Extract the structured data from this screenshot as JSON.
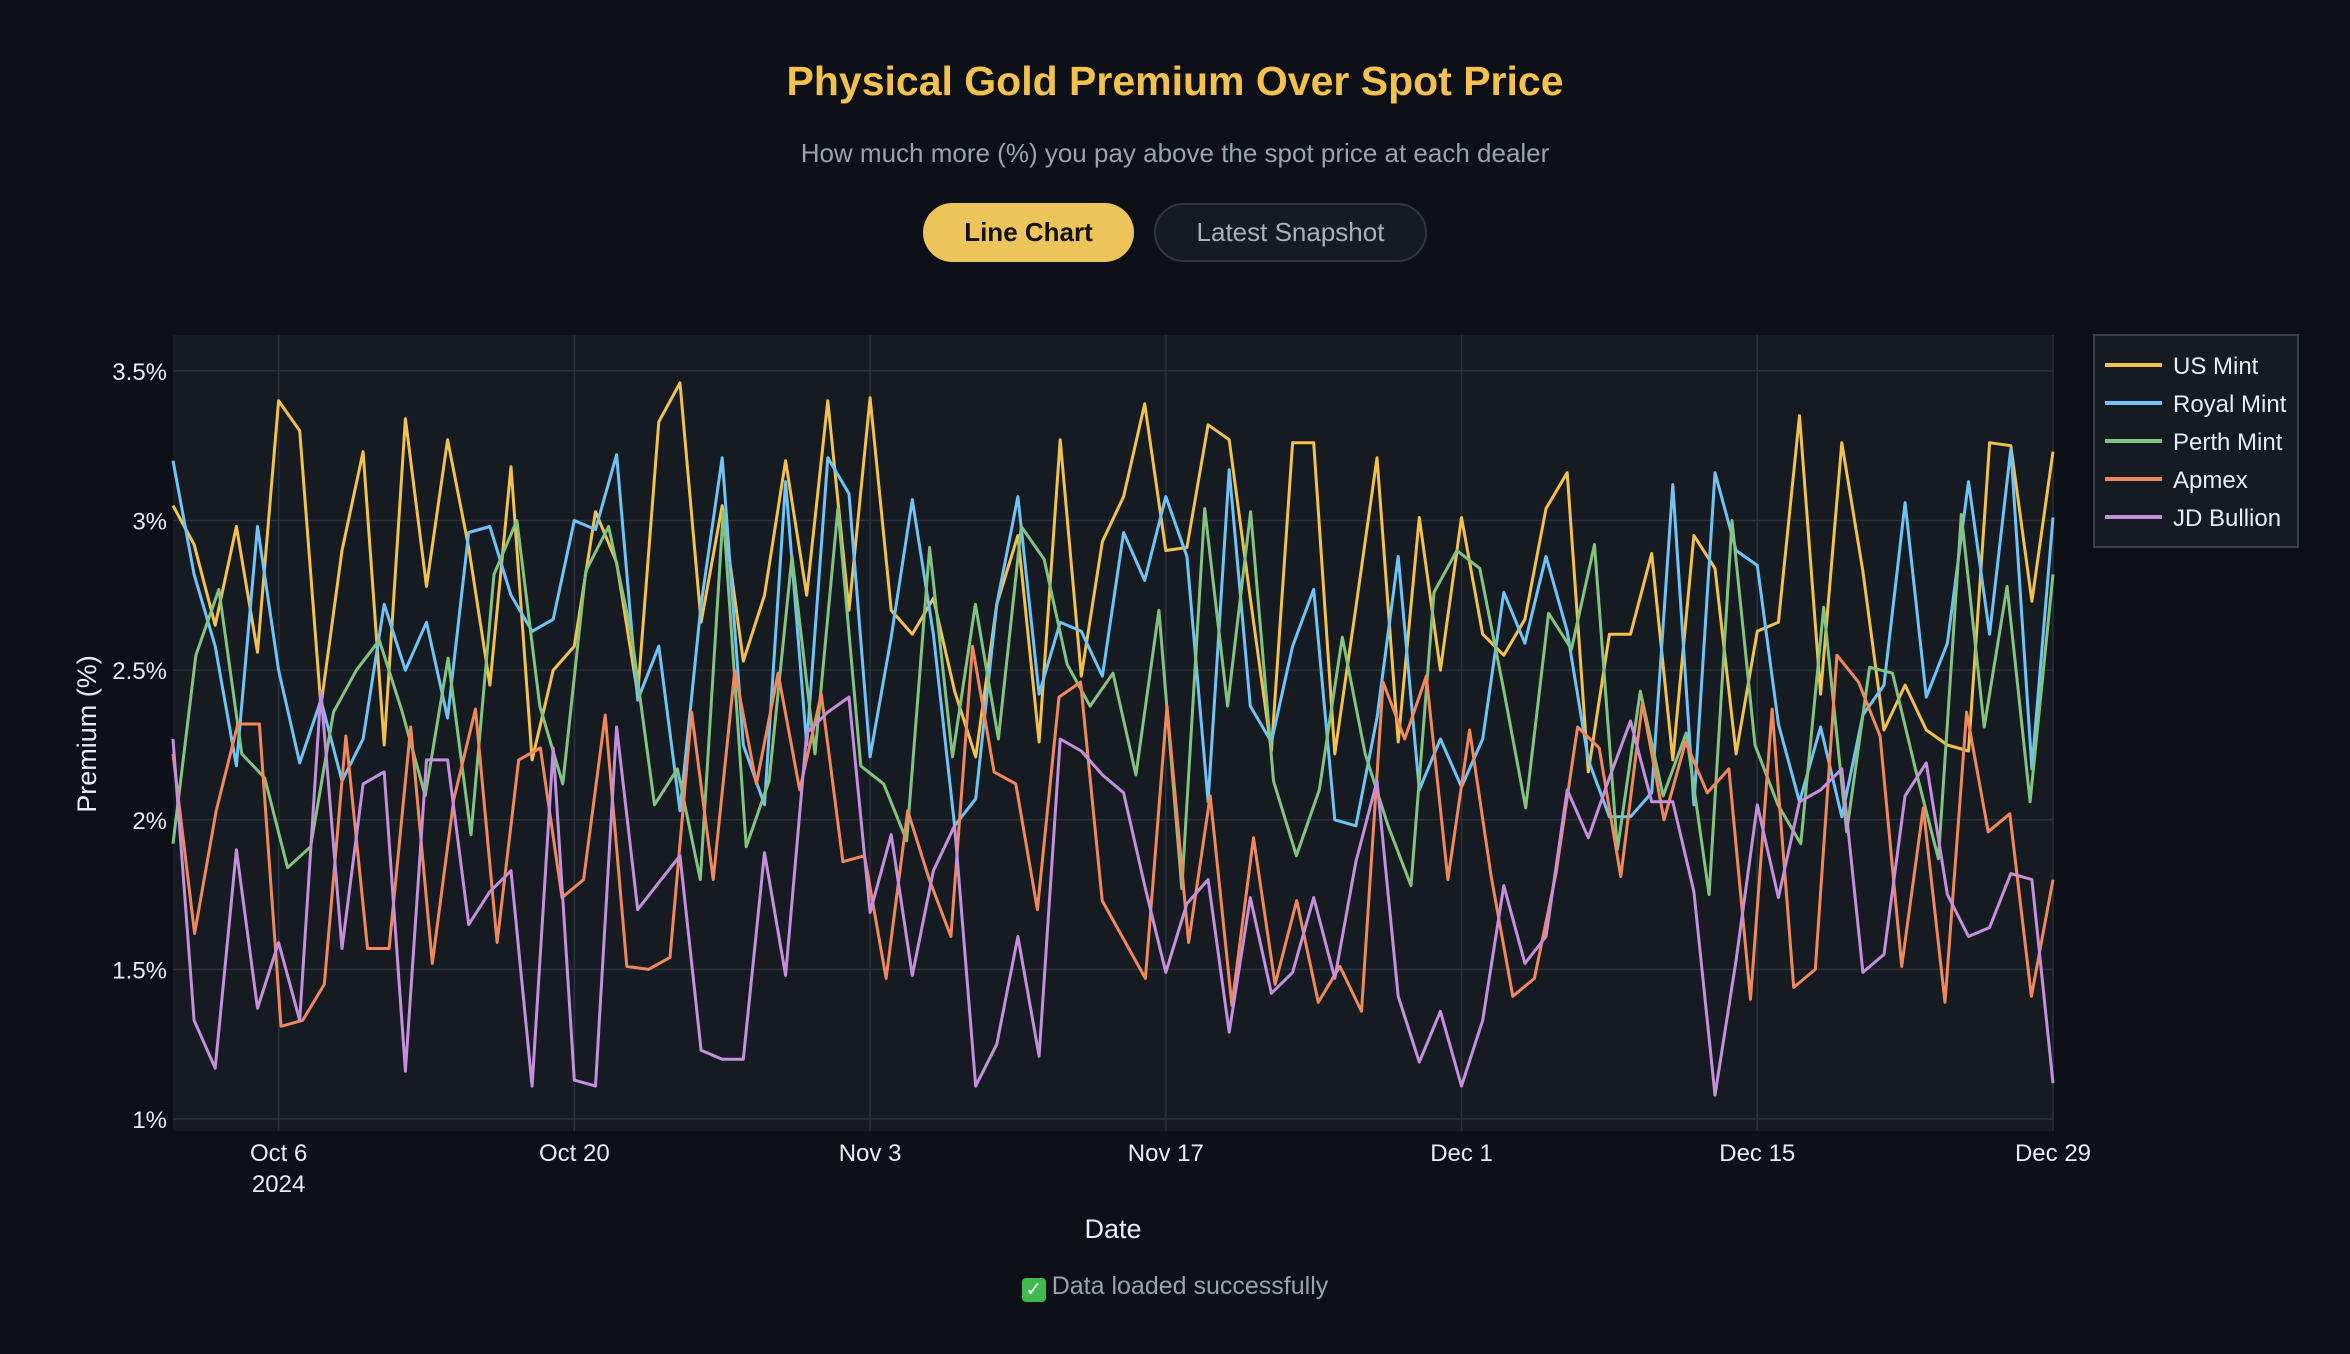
{
  "header": {
    "title": "Physical Gold Premium Over Spot Price",
    "subtitle": "How much more (%) you pay above the spot price at each dealer"
  },
  "toggles": {
    "line_chart_label": "Line Chart",
    "snapshot_label": "Latest Snapshot"
  },
  "status": {
    "icon": "check-icon",
    "text": "Data loaded successfully"
  },
  "colors": {
    "background": "#0d1117",
    "plot_background": "#161b22",
    "accent": "#f2c14e",
    "US Mint": "#f2c14e",
    "Royal Mint": "#6fc3f5",
    "Perth Mint": "#82c47f",
    "Apmex": "#f0885c",
    "JD Bullion": "#c58fdd"
  },
  "chart_data": {
    "type": "line",
    "title": "",
    "xlabel": "Date",
    "ylabel": "Premium (%)",
    "ylim": [
      0.96,
      3.62
    ],
    "yticks": [
      1,
      1.5,
      2,
      2.5,
      3,
      3.5
    ],
    "ytick_labels": [
      "1%",
      "1.5%",
      "2%",
      "2.5%",
      "3%",
      "3.5%"
    ],
    "x_start_date": "2024-10-01",
    "x_end_date": "2024-12-29",
    "xticks": [
      {
        "date": "2024-10-06",
        "label": "Oct 6",
        "sublabel": "2024"
      },
      {
        "date": "2024-10-20",
        "label": "Oct 20",
        "sublabel": ""
      },
      {
        "date": "2024-11-03",
        "label": "Nov 3",
        "sublabel": ""
      },
      {
        "date": "2024-11-17",
        "label": "Nov 17",
        "sublabel": ""
      },
      {
        "date": "2024-12-01",
        "label": "Dec 1",
        "sublabel": ""
      },
      {
        "date": "2024-12-15",
        "label": "Dec 15",
        "sublabel": ""
      },
      {
        "date": "2024-12-29",
        "label": "Dec 29",
        "sublabel": ""
      }
    ],
    "legend_position": "top-right outside",
    "series": [
      {
        "name": "US Mint",
        "values": [
          3.05,
          2.92,
          2.65,
          2.98,
          2.56,
          3.4,
          3.3,
          2.38,
          2.9,
          3.23,
          2.25,
          3.34,
          2.78,
          3.27,
          2.91,
          2.45,
          3.18,
          2.2,
          2.5,
          2.58,
          3.03,
          2.86,
          2.42,
          3.33,
          3.46,
          2.66,
          3.05,
          2.53,
          2.75,
          3.2,
          2.75,
          3.4,
          2.7,
          3.41,
          2.7,
          2.62,
          2.74,
          2.43,
          2.21,
          2.72,
          2.95,
          2.26,
          3.27,
          2.48,
          2.93,
          3.08,
          3.39,
          2.9,
          2.91,
          3.32,
          3.27,
          2.74,
          2.23,
          3.26,
          3.26,
          2.22,
          2.71,
          3.21,
          2.26,
          3.01,
          2.5,
          3.01,
          2.62,
          2.55,
          2.67,
          3.04,
          3.16,
          2.16,
          2.62,
          2.62,
          2.89,
          2.2,
          2.95,
          2.84,
          2.22,
          2.63,
          2.66,
          3.35,
          2.42,
          3.26,
          2.83,
          2.3,
          2.45,
          2.3,
          2.25,
          2.23,
          3.26,
          3.25,
          2.73,
          3.23
        ]
      },
      {
        "name": "Royal Mint",
        "values": [
          3.2,
          2.82,
          2.58,
          2.18,
          2.98,
          2.5,
          2.19,
          2.4,
          2.13,
          2.27,
          2.72,
          2.5,
          2.66,
          2.34,
          2.96,
          2.98,
          2.75,
          2.63,
          2.67,
          3.0,
          2.97,
          3.22,
          2.4,
          2.58,
          2.03,
          2.72,
          3.21,
          2.25,
          2.05,
          3.13,
          2.25,
          3.21,
          3.09,
          2.21,
          2.61,
          3.07,
          2.62,
          1.98,
          2.07,
          2.72,
          3.08,
          2.42,
          2.66,
          2.63,
          2.48,
          2.96,
          2.8,
          3.08,
          2.88,
          2.06,
          3.17,
          2.38,
          2.26,
          2.58,
          2.77,
          2.0,
          1.98,
          2.34,
          2.88,
          2.1,
          2.27,
          2.11,
          2.27,
          2.76,
          2.59,
          2.88,
          2.63,
          2.2,
          2.01,
          2.01,
          2.09,
          3.12,
          2.05,
          3.16,
          2.9,
          2.85,
          2.32,
          2.06,
          2.31,
          2.01,
          2.35,
          2.45,
          3.06,
          2.41,
          2.59,
          3.13,
          2.62,
          3.24,
          2.17,
          3.01
        ]
      },
      {
        "name": "Perth Mint",
        "values": [
          1.92,
          2.55,
          2.77,
          2.22,
          2.14,
          1.84,
          1.91,
          2.36,
          2.5,
          2.6,
          2.36,
          2.08,
          2.54,
          1.95,
          2.82,
          3.0,
          2.38,
          2.12,
          2.83,
          2.98,
          2.62,
          2.05,
          2.17,
          1.8,
          3.03,
          1.91,
          2.13,
          2.88,
          2.22,
          3.04,
          2.18,
          2.12,
          1.93,
          2.91,
          2.21,
          2.72,
          2.27,
          2.98,
          2.87,
          2.52,
          2.38,
          2.49,
          2.15,
          2.7,
          1.77,
          3.04,
          2.38,
          3.03,
          2.13,
          1.88,
          2.1,
          2.61,
          2.22,
          1.98,
          1.78,
          2.76,
          2.9,
          2.84,
          2.45,
          2.04,
          2.69,
          2.57,
          2.92,
          1.9,
          2.43,
          2.08,
          2.29,
          1.75,
          3.0,
          2.25,
          2.05,
          1.92,
          2.71,
          1.96,
          2.51,
          2.49,
          2.17,
          1.87,
          3.02,
          2.31,
          2.78,
          2.06,
          2.82
        ]
      },
      {
        "name": "Apmex",
        "values": [
          2.22,
          1.62,
          2.03,
          2.32,
          2.32,
          1.31,
          1.33,
          1.45,
          2.28,
          1.57,
          1.57,
          2.31,
          1.52,
          2.07,
          2.37,
          1.59,
          2.2,
          2.24,
          1.74,
          1.8,
          2.35,
          1.51,
          1.5,
          1.54,
          2.36,
          1.8,
          2.5,
          2.12,
          2.49,
          2.1,
          2.42,
          1.86,
          1.88,
          1.47,
          2.03,
          1.8,
          1.61,
          2.58,
          2.16,
          2.12,
          1.7,
          2.41,
          2.46,
          1.73,
          1.6,
          1.47,
          2.38,
          1.59,
          2.08,
          1.38,
          1.94,
          1.45,
          1.73,
          1.39,
          1.51,
          1.36,
          2.46,
          2.27,
          2.48,
          1.8,
          2.3,
          1.81,
          1.41,
          1.47,
          1.82,
          2.31,
          2.24,
          1.81,
          2.39,
          2.0,
          2.26,
          2.09,
          2.17,
          1.4,
          2.37,
          1.44,
          1.5,
          2.55,
          2.46,
          2.28,
          1.51,
          2.04,
          1.39,
          2.36,
          1.96,
          2.02,
          1.41,
          1.8
        ]
      },
      {
        "name": "JD Bullion",
        "values": [
          2.27,
          1.33,
          1.17,
          1.9,
          1.37,
          1.59,
          1.33,
          2.43,
          1.57,
          2.12,
          2.16,
          1.16,
          2.2,
          2.2,
          1.65,
          1.76,
          1.83,
          1.11,
          2.24,
          1.13,
          1.11,
          2.31,
          1.7,
          1.79,
          1.88,
          1.23,
          1.2,
          1.2,
          1.89,
          1.48,
          2.29,
          2.36,
          2.41,
          1.69,
          1.95,
          1.48,
          1.83,
          1.98,
          1.11,
          1.25,
          1.61,
          1.21,
          2.27,
          2.23,
          2.15,
          2.09,
          1.78,
          1.49,
          1.72,
          1.8,
          1.29,
          1.74,
          1.42,
          1.49,
          1.74,
          1.47,
          1.86,
          2.13,
          1.41,
          1.19,
          1.36,
          1.11,
          1.33,
          1.78,
          1.52,
          1.61,
          2.1,
          1.94,
          2.14,
          2.33,
          2.06,
          2.06,
          1.76,
          1.08,
          1.53,
          2.05,
          1.74,
          2.06,
          2.1,
          2.17,
          1.49,
          1.55,
          2.08,
          2.19,
          1.75,
          1.61,
          1.64,
          1.82,
          1.8,
          1.12
        ]
      }
    ]
  }
}
